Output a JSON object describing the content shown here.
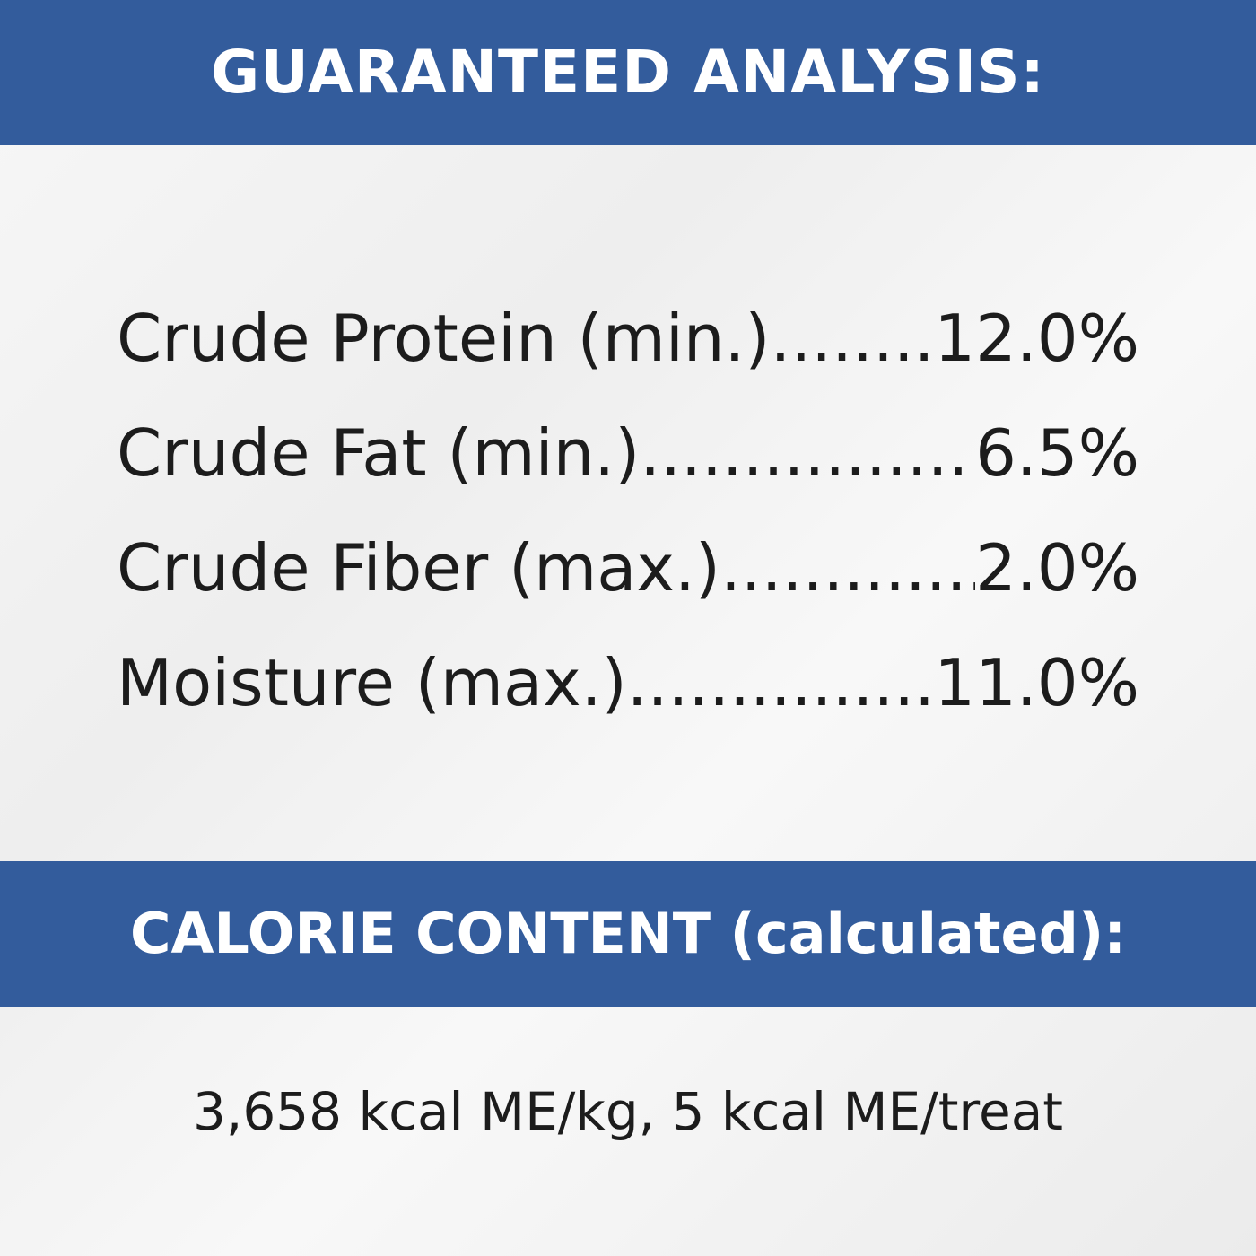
{
  "header": {
    "title": "GUARANTEED ANALYSIS:"
  },
  "analysis": [
    {
      "label": "Crude Protein (min.)",
      "dots": "..........",
      "value": "12.0%"
    },
    {
      "label": "Crude Fat (min.)",
      "dots": "..................",
      "value": "6.5%"
    },
    {
      "label": "Crude Fiber (max.)",
      "dots": ".............",
      "value": "2.0%"
    },
    {
      "label": "Moisture (max.)",
      "dots": "..................",
      "value": "11.0%"
    }
  ],
  "calorie": {
    "title": "CALORIE CONTENT (calculated):",
    "text": "3,658 kcal ME/kg, 5 kcal ME/treat"
  }
}
